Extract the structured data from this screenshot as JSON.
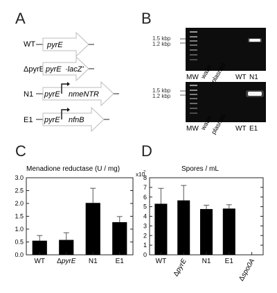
{
  "panels": {
    "A": "A",
    "B": "B",
    "C": "C",
    "D": "D"
  },
  "constructs": [
    {
      "name": "WT",
      "genes": [
        "pyrE"
      ],
      "promoter": false
    },
    {
      "name": "ΔpyrE",
      "genes": [
        "pyrE",
        "·lacZ'"
      ],
      "promoter": false
    },
    {
      "name": "N1",
      "genes": [
        "pyrE",
        "nmeNTR"
      ],
      "promoter": true
    },
    {
      "name": "E1",
      "genes": [
        "pyrE",
        "nfnB"
      ],
      "promoter": true
    }
  ],
  "gels": [
    {
      "markers": [
        "1.5 kbp",
        "1.2 kbp"
      ],
      "lanes": [
        "MW",
        "water",
        "plasmid",
        "WT",
        "N1"
      ]
    },
    {
      "markers": [
        "1.5 kbp",
        "1.2 kbp"
      ],
      "lanes": [
        "MW",
        "water",
        "plasmid",
        "WT",
        "E1"
      ]
    }
  ],
  "chart_data": [
    {
      "type": "bar",
      "title": "Menadione reductase (U / mg)",
      "categories": [
        "WT",
        "ΔpyrE",
        "N1",
        "E1"
      ],
      "values": [
        0.55,
        0.58,
        2.02,
        1.27
      ],
      "errors": [
        0.2,
        0.28,
        0.57,
        0.22
      ],
      "ylim": [
        0,
        3.0
      ],
      "yticks": [
        "0.0",
        "0.5",
        "1.0",
        "1.5",
        "2.0",
        "2.5",
        "3.0"
      ],
      "bar_color": "#000000"
    },
    {
      "type": "bar",
      "title": "Spores / mL",
      "multiplier": "x10",
      "multiplier_exp": "7",
      "categories": [
        "WT",
        "ΔpyrE",
        "N1",
        "E1",
        "Δspo0A"
      ],
      "values": [
        5.3,
        5.65,
        4.75,
        4.8,
        0
      ],
      "errors": [
        1.6,
        1.55,
        0.4,
        0.4,
        0
      ],
      "ylim": [
        0,
        8
      ],
      "yticks": [
        "0",
        "1",
        "2",
        "3",
        "4",
        "5",
        "6",
        "7",
        "8"
      ],
      "bar_color": "#000000"
    }
  ]
}
